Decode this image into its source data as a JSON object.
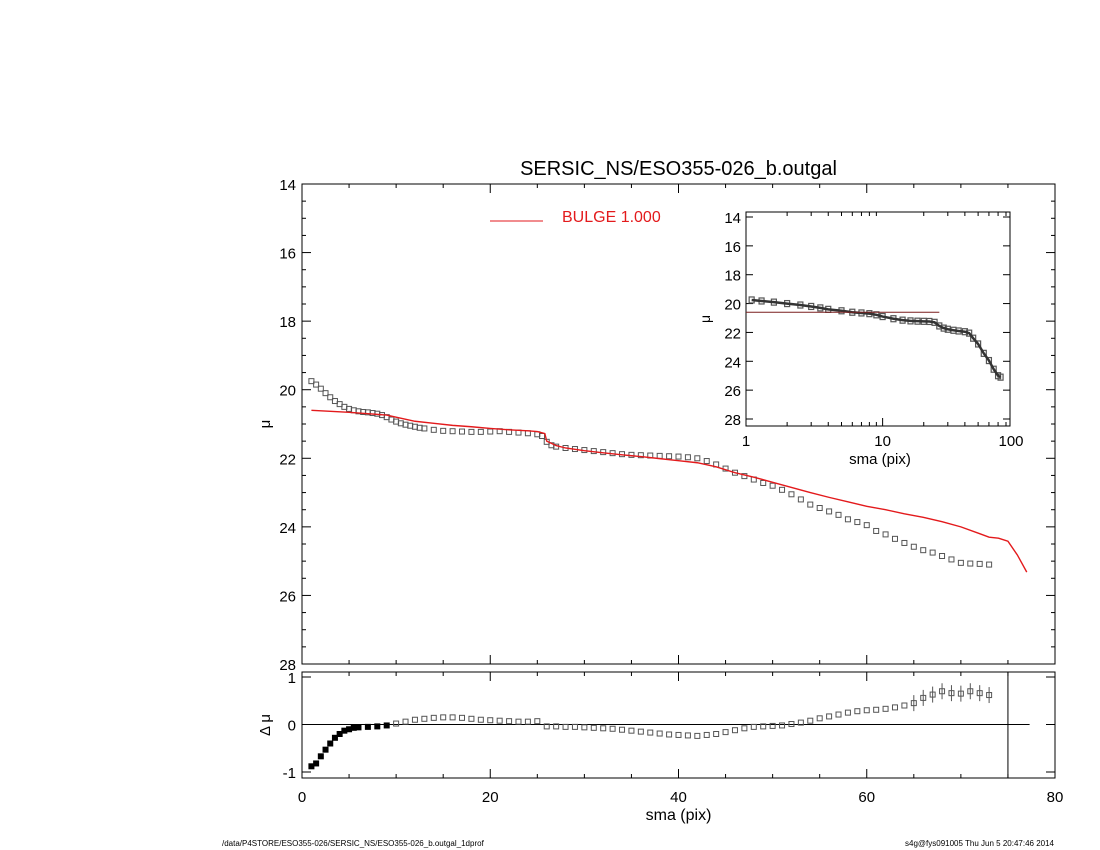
{
  "chart_data": [
    {
      "type": "scatter",
      "panel": "main",
      "title": "SERSIC_NS/ESO355-026_b.outgal",
      "xlabel": "",
      "ylabel": "μ",
      "xlim": [
        0,
        80
      ],
      "ylim": [
        28,
        14
      ],
      "y_inverted": true,
      "yticks": [
        14,
        16,
        18,
        20,
        22,
        24,
        26,
        28
      ],
      "legend": {
        "label": "BULGE  1.000",
        "color": "#e31a1c",
        "placement": "top-center"
      },
      "series": [
        {
          "kind": "markers",
          "marker": "square",
          "color": "#555555",
          "points": [
            [
              1,
              19.75
            ],
            [
              1.5,
              19.85
            ],
            [
              2,
              19.97
            ],
            [
              2.5,
              20.1
            ],
            [
              3,
              20.22
            ],
            [
              3.5,
              20.33
            ],
            [
              4,
              20.42
            ],
            [
              4.5,
              20.5
            ],
            [
              5,
              20.56
            ],
            [
              5.5,
              20.6
            ],
            [
              6,
              20.63
            ],
            [
              6.5,
              20.65
            ],
            [
              7,
              20.66
            ],
            [
              7.5,
              20.68
            ],
            [
              8,
              20.7
            ],
            [
              8.5,
              20.74
            ],
            [
              9,
              20.8
            ],
            [
              9.5,
              20.87
            ],
            [
              10,
              20.93
            ],
            [
              10.5,
              20.98
            ],
            [
              11,
              21.02
            ],
            [
              11.5,
              21.05
            ],
            [
              12,
              21.08
            ],
            [
              12.5,
              21.11
            ],
            [
              13,
              21.13
            ],
            [
              14,
              21.17
            ],
            [
              15,
              21.2
            ],
            [
              16,
              21.21
            ],
            [
              17,
              21.22
            ],
            [
              18,
              21.23
            ],
            [
              19,
              21.23
            ],
            [
              20,
              21.22
            ],
            [
              21,
              21.21
            ],
            [
              22,
              21.23
            ],
            [
              23,
              21.25
            ],
            [
              24,
              21.27
            ],
            [
              25,
              21.3
            ],
            [
              25.5,
              21.35
            ],
            [
              26,
              21.52
            ],
            [
              26.5,
              21.62
            ],
            [
              27,
              21.66
            ],
            [
              28,
              21.7
            ],
            [
              29,
              21.73
            ],
            [
              30,
              21.76
            ],
            [
              31,
              21.79
            ],
            [
              32,
              21.82
            ],
            [
              33,
              21.85
            ],
            [
              34,
              21.88
            ],
            [
              35,
              21.9
            ],
            [
              36,
              21.91
            ],
            [
              37,
              21.92
            ],
            [
              38,
              21.93
            ],
            [
              39,
              21.94
            ],
            [
              40,
              21.95
            ],
            [
              41,
              21.97
            ],
            [
              42,
              22.0
            ],
            [
              43,
              22.08
            ],
            [
              44,
              22.18
            ],
            [
              45,
              22.3
            ],
            [
              46,
              22.42
            ],
            [
              47,
              22.52
            ],
            [
              48,
              22.62
            ],
            [
              49,
              22.72
            ],
            [
              50,
              22.8
            ],
            [
              51,
              22.92
            ],
            [
              52,
              23.05
            ],
            [
              53,
              23.2
            ],
            [
              54,
              23.35
            ],
            [
              55,
              23.45
            ],
            [
              56,
              23.55
            ],
            [
              57,
              23.65
            ],
            [
              58,
              23.78
            ],
            [
              59,
              23.86
            ],
            [
              60,
              23.95
            ],
            [
              61,
              24.12
            ],
            [
              62,
              24.22
            ],
            [
              63,
              24.35
            ],
            [
              64,
              24.47
            ],
            [
              65,
              24.58
            ],
            [
              66,
              24.68
            ],
            [
              67,
              24.75
            ],
            [
              68,
              24.85
            ],
            [
              69,
              24.95
            ],
            [
              70,
              25.05
            ],
            [
              71,
              25.07
            ],
            [
              72,
              25.08
            ],
            [
              73,
              25.1
            ]
          ]
        },
        {
          "kind": "line",
          "name": "BULGE  1.000",
          "color": "#e31a1c",
          "points": [
            [
              1,
              20.6
            ],
            [
              3,
              20.63
            ],
            [
              5,
              20.66
            ],
            [
              7,
              20.7
            ],
            [
              9,
              20.74
            ],
            [
              10,
              20.8
            ],
            [
              12,
              20.92
            ],
            [
              14,
              20.98
            ],
            [
              16,
              21.04
            ],
            [
              18,
              21.08
            ],
            [
              20,
              21.13
            ],
            [
              22,
              21.17
            ],
            [
              24,
              21.2
            ],
            [
              25,
              21.22
            ],
            [
              25.8,
              21.28
            ],
            [
              26,
              21.5
            ],
            [
              27,
              21.63
            ],
            [
              28,
              21.7
            ],
            [
              30,
              21.78
            ],
            [
              32,
              21.84
            ],
            [
              34,
              21.9
            ],
            [
              36,
              21.95
            ],
            [
              38,
              22.01
            ],
            [
              40,
              22.07
            ],
            [
              42,
              22.13
            ],
            [
              44,
              22.25
            ],
            [
              46,
              22.42
            ],
            [
              48,
              22.55
            ],
            [
              50,
              22.7
            ],
            [
              52,
              22.85
            ],
            [
              54,
              23.0
            ],
            [
              56,
              23.14
            ],
            [
              58,
              23.27
            ],
            [
              60,
              23.4
            ],
            [
              62,
              23.5
            ],
            [
              64,
              23.62
            ],
            [
              66,
              23.72
            ],
            [
              68,
              23.85
            ],
            [
              70,
              24.0
            ],
            [
              72,
              24.2
            ],
            [
              73,
              24.3
            ],
            [
              74,
              24.33
            ],
            [
              75,
              24.42
            ],
            [
              76,
              24.82
            ],
            [
              77,
              25.32
            ]
          ]
        }
      ]
    },
    {
      "type": "scatter",
      "panel": "residual",
      "xlabel": "sma (pix)",
      "ylabel": "Δ μ",
      "xlim": [
        0,
        80
      ],
      "ylim": [
        -1,
        1
      ],
      "xticks": [
        0,
        20,
        40,
        60,
        80
      ],
      "yticks": [
        -1,
        0,
        1
      ],
      "zero_line": true,
      "vertical_line_x": 75,
      "series": [
        {
          "kind": "markers",
          "marker": "square",
          "color": "#555555",
          "points": [
            [
              1,
              -0.88
            ],
            [
              1.5,
              -0.82
            ],
            [
              2,
              -0.67
            ],
            [
              2.5,
              -0.53
            ],
            [
              3,
              -0.4
            ],
            [
              3.5,
              -0.28
            ],
            [
              4,
              -0.2
            ],
            [
              4.5,
              -0.13
            ],
            [
              5,
              -0.1
            ],
            [
              5.5,
              -0.07
            ],
            [
              6,
              -0.06
            ],
            [
              7,
              -0.05
            ],
            [
              8,
              -0.04
            ],
            [
              9,
              -0.02
            ],
            [
              10,
              0.02
            ],
            [
              11,
              0.06
            ],
            [
              12,
              0.1
            ],
            [
              13,
              0.12
            ],
            [
              14,
              0.14
            ],
            [
              15,
              0.15
            ],
            [
              16,
              0.15
            ],
            [
              17,
              0.14
            ],
            [
              18,
              0.12
            ],
            [
              19,
              0.1
            ],
            [
              20,
              0.09
            ],
            [
              21,
              0.08
            ],
            [
              22,
              0.07
            ],
            [
              23,
              0.06
            ],
            [
              24,
              0.06
            ],
            [
              25,
              0.07
            ],
            [
              26,
              -0.04
            ],
            [
              27,
              -0.04
            ],
            [
              28,
              -0.05
            ],
            [
              29,
              -0.05
            ],
            [
              30,
              -0.06
            ],
            [
              31,
              -0.07
            ],
            [
              32,
              -0.08
            ],
            [
              33,
              -0.09
            ],
            [
              34,
              -0.11
            ],
            [
              35,
              -0.13
            ],
            [
              36,
              -0.15
            ],
            [
              37,
              -0.17
            ],
            [
              38,
              -0.19
            ],
            [
              39,
              -0.21
            ],
            [
              40,
              -0.22
            ],
            [
              41,
              -0.23
            ],
            [
              42,
              -0.24
            ],
            [
              43,
              -0.22
            ],
            [
              44,
              -0.2
            ],
            [
              45,
              -0.16
            ],
            [
              46,
              -0.12
            ],
            [
              47,
              -0.08
            ],
            [
              48,
              -0.05
            ],
            [
              49,
              -0.04
            ],
            [
              50,
              -0.03
            ],
            [
              51,
              -0.02
            ],
            [
              52,
              0.01
            ],
            [
              53,
              0.04
            ],
            [
              54,
              0.08
            ],
            [
              55,
              0.13
            ],
            [
              56,
              0.17
            ],
            [
              57,
              0.21
            ],
            [
              58,
              0.25
            ],
            [
              59,
              0.28
            ],
            [
              60,
              0.3
            ],
            [
              61,
              0.31
            ],
            [
              62,
              0.33
            ],
            [
              63,
              0.36
            ],
            [
              64,
              0.4
            ],
            [
              65,
              0.45
            ],
            [
              66,
              0.56
            ],
            [
              67,
              0.63
            ],
            [
              68,
              0.7
            ],
            [
              69,
              0.66
            ],
            [
              70,
              0.65
            ],
            [
              71,
              0.7
            ],
            [
              72,
              0.66
            ],
            [
              73,
              0.62
            ]
          ]
        }
      ]
    },
    {
      "type": "scatter",
      "panel": "inset",
      "xlabel": "sma (pix)",
      "ylabel": "μ",
      "xscale": "log",
      "xlim": [
        1,
        100
      ],
      "ylim": [
        28,
        14
      ],
      "y_inverted": true,
      "xticks": [
        1,
        10,
        100
      ],
      "yticks": [
        14,
        16,
        18,
        20,
        22,
        24,
        26,
        28
      ],
      "series": [
        {
          "kind": "markers",
          "marker": "square",
          "color": "#555555",
          "points": [
            [
              1.1,
              19.75
            ],
            [
              1.3,
              19.82
            ],
            [
              1.6,
              19.9
            ],
            [
              2,
              20.0
            ],
            [
              2.5,
              20.1
            ],
            [
              3,
              20.2
            ],
            [
              3.5,
              20.3
            ],
            [
              4,
              20.4
            ],
            [
              5,
              20.5
            ],
            [
              6,
              20.6
            ],
            [
              7,
              20.65
            ],
            [
              8,
              20.7
            ],
            [
              9,
              20.78
            ],
            [
              10,
              20.9
            ],
            [
              12,
              21.05
            ],
            [
              14,
              21.15
            ],
            [
              16,
              21.2
            ],
            [
              18,
              21.22
            ],
            [
              20,
              21.23
            ],
            [
              22,
              21.24
            ],
            [
              24,
              21.3
            ],
            [
              26,
              21.55
            ],
            [
              28,
              21.7
            ],
            [
              30,
              21.78
            ],
            [
              33,
              21.85
            ],
            [
              36,
              21.9
            ],
            [
              40,
              21.95
            ],
            [
              43,
              22.05
            ],
            [
              46,
              22.4
            ],
            [
              50,
              22.8
            ],
            [
              55,
              23.45
            ],
            [
              60,
              23.95
            ],
            [
              65,
              24.55
            ],
            [
              70,
              25.0
            ],
            [
              73,
              25.1
            ]
          ]
        },
        {
          "kind": "line",
          "color": "#7a1f1f",
          "points": [
            [
              1,
              20.6
            ],
            [
              26,
              20.6
            ]
          ]
        }
      ]
    }
  ],
  "footer": {
    "left": "/data/P4STORE/ESO355-026/SERSIC_NS/ESO355-026_b.outgal_1dprof",
    "right": "s4g@fys091005  Thu Jun  5 20:47:46 2014"
  }
}
